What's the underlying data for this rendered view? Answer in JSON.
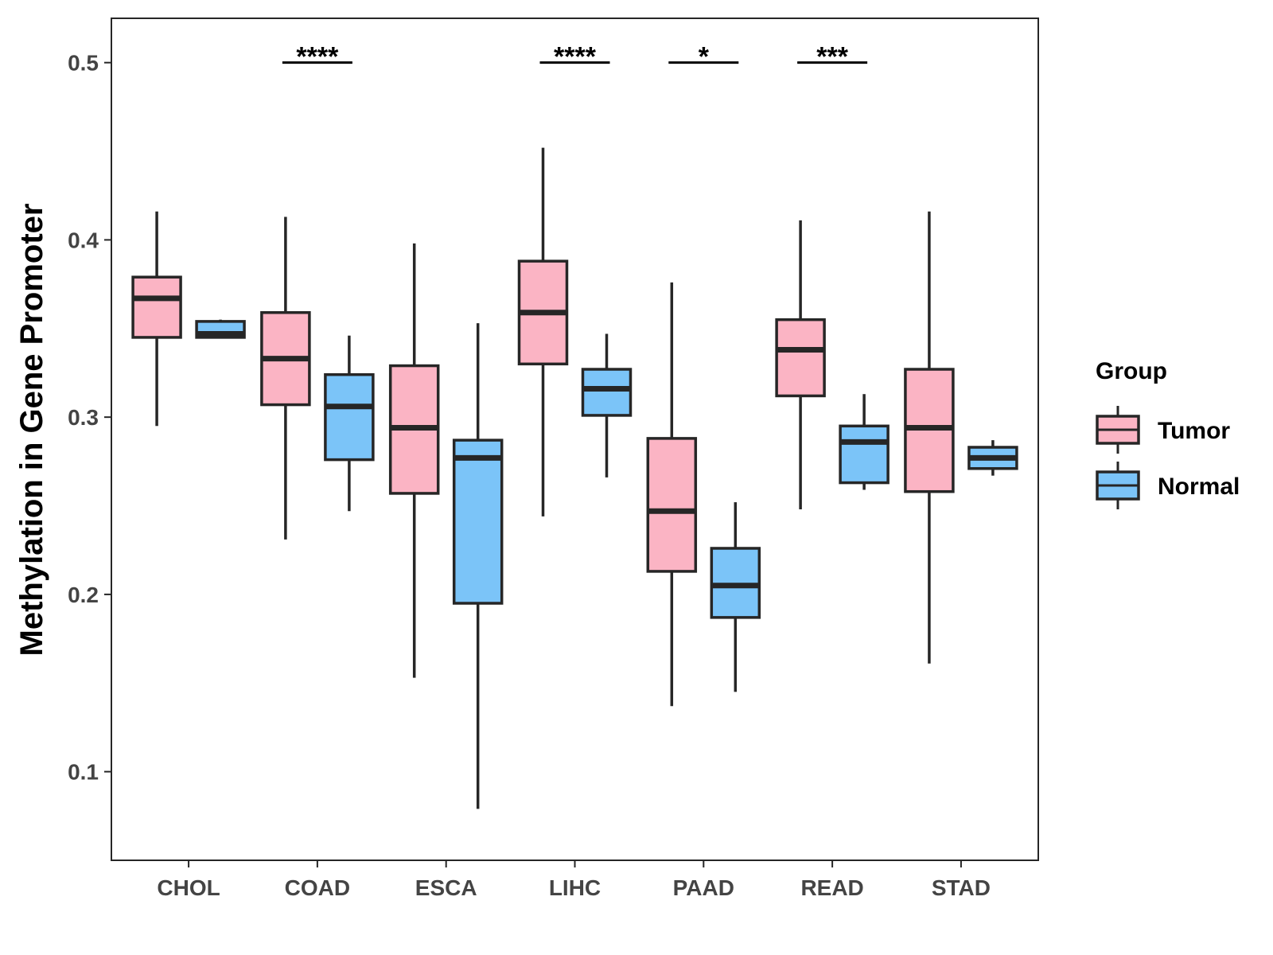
{
  "chart_data": {
    "type": "boxplot",
    "title": "",
    "xlabel": "",
    "ylabel": "Methylation in Gene Promoter",
    "ylim": [
      0.05,
      0.525
    ],
    "yticks": [
      0.1,
      0.2,
      0.3,
      0.4,
      0.5
    ],
    "ytick_labels": [
      "0.1",
      "0.2",
      "0.3",
      "0.4",
      "0.5"
    ],
    "categories": [
      "CHOL",
      "COAD",
      "ESCA",
      "LIHC",
      "PAAD",
      "READ",
      "STAD"
    ],
    "grid": false,
    "legend": {
      "title": "Group",
      "position": "right",
      "entries": [
        {
          "name": "Tumor",
          "color": "#FBB4C4"
        },
        {
          "name": "Normal",
          "color": "#7BC4F8"
        }
      ]
    },
    "series": [
      {
        "name": "Tumor",
        "color": "#FBB4C4",
        "boxes": [
          {
            "category": "CHOL",
            "whisker_low": 0.295,
            "q1": 0.345,
            "median": 0.367,
            "q3": 0.379,
            "whisker_high": 0.416
          },
          {
            "category": "COAD",
            "whisker_low": 0.231,
            "q1": 0.307,
            "median": 0.333,
            "q3": 0.359,
            "whisker_high": 0.413
          },
          {
            "category": "ESCA",
            "whisker_low": 0.153,
            "q1": 0.257,
            "median": 0.294,
            "q3": 0.329,
            "whisker_high": 0.398
          },
          {
            "category": "LIHC",
            "whisker_low": 0.244,
            "q1": 0.33,
            "median": 0.359,
            "q3": 0.388,
            "whisker_high": 0.452
          },
          {
            "category": "PAAD",
            "whisker_low": 0.137,
            "q1": 0.213,
            "median": 0.247,
            "q3": 0.288,
            "whisker_high": 0.376
          },
          {
            "category": "READ",
            "whisker_low": 0.248,
            "q1": 0.312,
            "median": 0.338,
            "q3": 0.355,
            "whisker_high": 0.411
          },
          {
            "category": "STAD",
            "whisker_low": 0.161,
            "q1": 0.258,
            "median": 0.294,
            "q3": 0.327,
            "whisker_high": 0.416
          }
        ]
      },
      {
        "name": "Normal",
        "color": "#7BC4F8",
        "boxes": [
          {
            "category": "CHOL",
            "whisker_low": 0.345,
            "q1": 0.345,
            "median": 0.347,
            "q3": 0.354,
            "whisker_high": 0.355
          },
          {
            "category": "COAD",
            "whisker_low": 0.247,
            "q1": 0.276,
            "median": 0.306,
            "q3": 0.324,
            "whisker_high": 0.346
          },
          {
            "category": "ESCA",
            "whisker_low": 0.079,
            "q1": 0.195,
            "median": 0.277,
            "q3": 0.287,
            "whisker_high": 0.353
          },
          {
            "category": "LIHC",
            "whisker_low": 0.266,
            "q1": 0.301,
            "median": 0.316,
            "q3": 0.327,
            "whisker_high": 0.347
          },
          {
            "category": "PAAD",
            "whisker_low": 0.145,
            "q1": 0.187,
            "median": 0.205,
            "q3": 0.226,
            "whisker_high": 0.252
          },
          {
            "category": "READ",
            "whisker_low": 0.259,
            "q1": 0.263,
            "median": 0.286,
            "q3": 0.295,
            "whisker_high": 0.313
          },
          {
            "category": "STAD",
            "whisker_low": 0.267,
            "q1": 0.271,
            "median": 0.277,
            "q3": 0.283,
            "whisker_high": 0.287
          }
        ]
      }
    ],
    "annotations": [
      {
        "category": "COAD",
        "label": "****",
        "y": 0.5
      },
      {
        "category": "LIHC",
        "label": "****",
        "y": 0.5
      },
      {
        "category": "PAAD",
        "label": "*",
        "y": 0.5
      },
      {
        "category": "READ",
        "label": "***",
        "y": 0.5
      }
    ]
  }
}
